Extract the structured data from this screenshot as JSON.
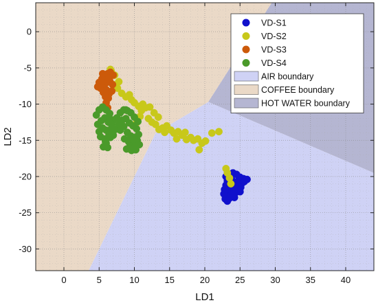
{
  "chart_data": {
    "type": "scatter",
    "xlabel": "LD1",
    "ylabel": "LD2",
    "xlim": [
      -4,
      44
    ],
    "ylim": [
      -33,
      4
    ],
    "xticks": [
      0,
      5,
      10,
      15,
      20,
      25,
      30,
      35,
      40
    ],
    "yticks": [
      0,
      -5,
      -10,
      -15,
      -20,
      -25,
      -30
    ],
    "grid": true,
    "legend_position": "top-right",
    "colors": {
      "VD-S1": "#1010cc",
      "VD-S2": "#c8c81a",
      "VD-S3": "#cc5a0a",
      "VD-S4": "#4a9a2a",
      "air": "#cfd2f5",
      "coffee": "#ead9c7",
      "hotwater": "#b5b6d2"
    },
    "regions": [
      {
        "name": "AIR boundary",
        "vertices": [
          [
            3.5,
            -33
          ],
          [
            13,
            -14
          ],
          [
            20.5,
            -9.7
          ],
          [
            44,
            -19.5
          ],
          [
            44,
            -33
          ]
        ]
      },
      {
        "name": "COFFEE boundary",
        "vertices": [
          [
            -4,
            4
          ],
          [
            29.5,
            4
          ],
          [
            20.5,
            -9.7
          ],
          [
            13,
            -14
          ],
          [
            3.5,
            -33
          ],
          [
            -4,
            -33
          ]
        ]
      },
      {
        "name": "HOT WATER boundary",
        "vertices": [
          [
            29.5,
            4
          ],
          [
            44,
            4
          ],
          [
            44,
            -19.5
          ],
          [
            20.5,
            -9.7
          ]
        ]
      }
    ],
    "series": [
      {
        "name": "VD-S1",
        "x": [
          23.0,
          23.5,
          24.0,
          24.5,
          25.0,
          25.5,
          23.2,
          23.8,
          24.3,
          24.8,
          25.3,
          23.0,
          23.6,
          24.1,
          24.6,
          25.1,
          25.6,
          22.8,
          23.4,
          24.0,
          24.5,
          25.0,
          23.3,
          23.9,
          24.4,
          24.9,
          23.1,
          23.7,
          24.2,
          22.9,
          23.5,
          24.0,
          22.7,
          23.2,
          26.0
        ],
        "y": [
          -20.0,
          -19.8,
          -19.5,
          -19.7,
          -20.1,
          -20.3,
          -20.6,
          -20.4,
          -20.8,
          -20.5,
          -20.9,
          -21.2,
          -21.0,
          -21.4,
          -21.1,
          -21.5,
          -20.7,
          -21.8,
          -21.6,
          -22.0,
          -21.7,
          -22.1,
          -22.3,
          -22.4,
          -22.2,
          -21.9,
          -22.7,
          -22.6,
          -22.9,
          -23.1,
          -23.0,
          -22.5,
          -22.4,
          -23.4,
          -20.4
        ]
      },
      {
        "name": "VD-S2",
        "x": [
          6.7,
          7.2,
          7.8,
          7.0,
          7.6,
          8.2,
          8.8,
          9.3,
          9.6,
          10.0,
          10.6,
          11.2,
          11.6,
          11.0,
          12.2,
          12.8,
          13.4,
          13.0,
          14.0,
          14.6,
          15.2,
          15.6,
          16.2,
          16.8,
          17.4,
          17.2,
          18.0,
          18.4,
          19.0,
          19.6,
          20.1,
          21.0,
          22.0,
          10.3,
          10.8,
          12.0,
          12.5,
          13.5,
          14.3,
          16.0,
          19.2,
          23.0,
          23.5,
          23.2,
          23.7,
          6.6
        ],
        "y": [
          -5.4,
          -6.0,
          -6.9,
          -7.3,
          -7.8,
          -8.5,
          -9.0,
          -8.7,
          -9.4,
          -9.8,
          -10.3,
          -10.0,
          -10.5,
          -10.9,
          -10.4,
          -11.2,
          -11.8,
          -12.8,
          -13.3,
          -13.0,
          -13.6,
          -14.0,
          -13.8,
          -14.3,
          -14.9,
          -13.9,
          -14.6,
          -15.0,
          -14.8,
          -15.4,
          -15.1,
          -14.0,
          -13.8,
          -12.6,
          -11.7,
          -12.0,
          -12.5,
          -13.5,
          -13.9,
          -14.8,
          -16.3,
          -18.9,
          -20.2,
          -19.5,
          -21.0,
          -5.2
        ]
      },
      {
        "name": "VD-S3",
        "x": [
          5.0,
          5.4,
          5.8,
          6.2,
          6.6,
          7.0,
          5.2,
          5.7,
          6.1,
          6.5,
          6.9,
          5.6,
          6.0,
          6.4,
          6.8,
          6.3,
          6.0,
          6.2,
          5.9,
          6.4,
          5.5,
          4.8
        ],
        "y": [
          -7.0,
          -6.5,
          -6.2,
          -5.8,
          -5.6,
          -6.0,
          -7.8,
          -7.4,
          -7.0,
          -6.8,
          -7.3,
          -8.4,
          -8.0,
          -8.6,
          -8.2,
          -9.2,
          -9.8,
          -10.5,
          -9.0,
          -6.4,
          -5.8,
          -7.6
        ],
        "sizes": []
      },
      {
        "name": "VD-S4",
        "x": [
          4.6,
          5.0,
          5.5,
          6.0,
          6.5,
          7.0,
          7.5,
          8.0,
          8.5,
          9.0,
          9.5,
          10.0,
          10.5,
          4.8,
          5.3,
          5.8,
          6.3,
          6.8,
          7.3,
          7.8,
          8.3,
          8.8,
          9.3,
          9.8,
          10.3,
          5.0,
          5.5,
          6.0,
          6.5,
          7.0,
          8.0,
          8.5,
          9.0,
          9.5,
          10.0,
          5.2,
          5.8,
          6.4,
          8.6,
          9.2,
          9.8,
          10.4,
          6.0,
          6.6,
          9.4,
          10.0,
          10.7,
          5.6,
          6.2,
          6.8,
          8.9,
          9.6,
          10.2,
          5.9,
          6.5,
          9.9,
          10.6,
          8.8
        ],
        "y": [
          -11.5,
          -10.8,
          -10.4,
          -10.8,
          -11.3,
          -12.2,
          -11.9,
          -11.2,
          -10.8,
          -10.9,
          -11.2,
          -11.8,
          -12.4,
          -12.8,
          -12.3,
          -11.9,
          -12.5,
          -12.8,
          -13.5,
          -12.8,
          -12.2,
          -12.0,
          -12.6,
          -13.0,
          -13.4,
          -13.8,
          -13.3,
          -13.6,
          -14.0,
          -14.3,
          -13.6,
          -13.1,
          -13.9,
          -14.4,
          -14.6,
          -14.5,
          -14.8,
          -14.2,
          -14.8,
          -15.2,
          -15.5,
          -15.0,
          -15.4,
          -14.6,
          -15.8,
          -16.0,
          -15.6,
          -15.9,
          -16.0,
          -13.2,
          -16.2,
          -16.4,
          -16.3,
          -15.2,
          -12.0,
          -14.9,
          -14.2,
          -10.8
        ]
      }
    ],
    "legend": [
      {
        "label": "VD-S1",
        "kind": "marker",
        "color_key": "VD-S1"
      },
      {
        "label": "VD-S2",
        "kind": "marker",
        "color_key": "VD-S2"
      },
      {
        "label": "VD-S3",
        "kind": "marker",
        "color_key": "VD-S3"
      },
      {
        "label": "VD-S4",
        "kind": "marker",
        "color_key": "VD-S4"
      },
      {
        "label": "AIR boundary",
        "kind": "patch",
        "color_key": "air"
      },
      {
        "label": "COFFEE boundary",
        "kind": "patch",
        "color_key": "coffee"
      },
      {
        "label": "HOT WATER boundary",
        "kind": "patch",
        "color_key": "hotwater"
      }
    ]
  }
}
